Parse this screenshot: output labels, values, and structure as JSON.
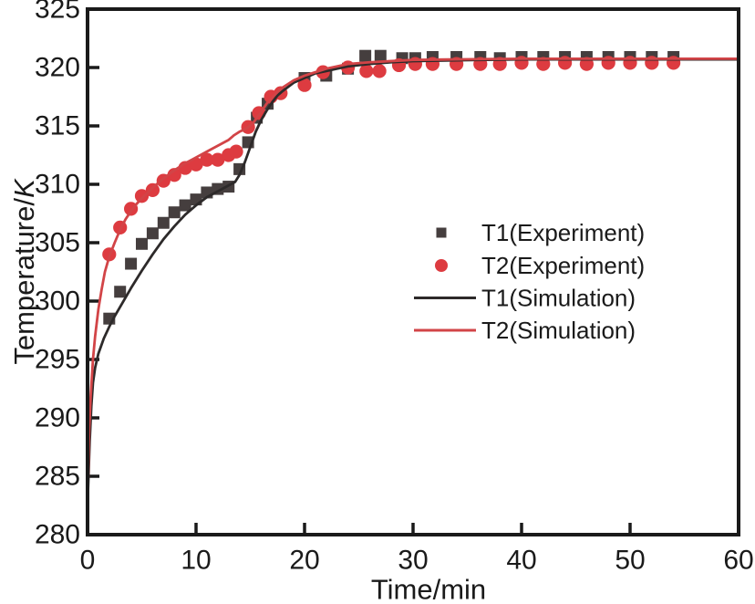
{
  "figure": {
    "background": "#ffffff",
    "axis_color": "#1a1a1a",
    "text_color": "#1a1a1a"
  },
  "chart_data": {
    "type": "line",
    "xlabel": "Time/min",
    "ylabel": "Temperature/K",
    "xlim": [
      0,
      60
    ],
    "ylim": [
      280,
      325
    ],
    "x_ticks": [
      0,
      10,
      20,
      30,
      40,
      50,
      60
    ],
    "y_ticks": [
      280,
      285,
      290,
      295,
      300,
      305,
      310,
      315,
      320,
      325
    ],
    "grid": false,
    "legend_position": "center-right",
    "series": [
      {
        "name": "T1(Experiment)",
        "kind": "scatter",
        "marker": "square",
        "color": "#453e3e",
        "points": [
          [
            2,
            298.5
          ],
          [
            3,
            300.8
          ],
          [
            4,
            303.2
          ],
          [
            5,
            304.9
          ],
          [
            6,
            305.8
          ],
          [
            7,
            306.7
          ],
          [
            8,
            307.6
          ],
          [
            9,
            308.2
          ],
          [
            10,
            308.7
          ],
          [
            11,
            309.3
          ],
          [
            12,
            309.6
          ],
          [
            13,
            309.8
          ],
          [
            14,
            311.3
          ],
          [
            14.8,
            313.6
          ],
          [
            15.6,
            315.7
          ],
          [
            16.6,
            316.9
          ],
          [
            20,
            319.1
          ],
          [
            22,
            319.3
          ],
          [
            24,
            319.9
          ],
          [
            25.6,
            321.0
          ],
          [
            27,
            321.0
          ],
          [
            29,
            320.8
          ],
          [
            30.2,
            320.8
          ],
          [
            31.8,
            320.9
          ],
          [
            34,
            320.9
          ],
          [
            36.2,
            320.9
          ],
          [
            38,
            320.8
          ],
          [
            40,
            320.9
          ],
          [
            42,
            320.9
          ],
          [
            44,
            320.9
          ],
          [
            46,
            320.9
          ],
          [
            48,
            320.9
          ],
          [
            50,
            320.9
          ],
          [
            52,
            320.9
          ],
          [
            54,
            320.9
          ]
        ]
      },
      {
        "name": "T2(Experiment)",
        "kind": "scatter",
        "marker": "circle",
        "color": "#dd3b40",
        "points": [
          [
            2,
            304.0
          ],
          [
            3,
            306.3
          ],
          [
            4,
            307.9
          ],
          [
            5,
            309.0
          ],
          [
            6,
            309.5
          ],
          [
            7,
            310.3
          ],
          [
            8,
            310.8
          ],
          [
            9,
            311.4
          ],
          [
            10,
            311.7
          ],
          [
            11,
            312.1
          ],
          [
            12,
            312.1
          ],
          [
            13,
            312.5
          ],
          [
            13.7,
            312.8
          ],
          [
            14.8,
            314.9
          ],
          [
            15.8,
            316.1
          ],
          [
            16.9,
            317.5
          ],
          [
            17.8,
            317.8
          ],
          [
            20,
            318.5
          ],
          [
            21.7,
            319.6
          ],
          [
            24,
            320.0
          ],
          [
            25.7,
            319.7
          ],
          [
            26.9,
            319.7
          ],
          [
            28.7,
            320.2
          ],
          [
            30.2,
            320.3
          ],
          [
            31.8,
            320.3
          ],
          [
            34,
            320.3
          ],
          [
            36.2,
            320.3
          ],
          [
            38,
            320.3
          ],
          [
            40,
            320.4
          ],
          [
            42,
            320.3
          ],
          [
            44,
            320.4
          ],
          [
            46,
            320.3
          ],
          [
            48,
            320.4
          ],
          [
            50,
            320.4
          ],
          [
            52,
            320.4
          ],
          [
            54,
            320.4
          ]
        ]
      },
      {
        "name": "T1(Simulation)",
        "kind": "line",
        "color": "#2d2a2a",
        "points": [
          [
            0,
            282.5
          ],
          [
            0.2,
            288.0
          ],
          [
            0.35,
            291.0
          ],
          [
            0.5,
            293.0
          ],
          [
            0.7,
            294.3
          ],
          [
            1,
            295.5
          ],
          [
            1.5,
            296.8
          ],
          [
            2,
            297.8
          ],
          [
            2.5,
            298.7
          ],
          [
            3,
            299.5
          ],
          [
            3.5,
            300.3
          ],
          [
            4,
            301.1
          ],
          [
            5,
            302.6
          ],
          [
            6,
            304.0
          ],
          [
            7,
            305.3
          ],
          [
            8,
            306.4
          ],
          [
            9,
            307.4
          ],
          [
            10,
            308.2
          ],
          [
            11,
            308.9
          ],
          [
            12,
            309.4
          ],
          [
            13,
            309.9
          ],
          [
            13.6,
            310.2
          ],
          [
            14,
            310.8
          ],
          [
            14.5,
            311.9
          ],
          [
            15,
            313.2
          ],
          [
            15.5,
            314.5
          ],
          [
            16,
            315.5
          ],
          [
            16.5,
            316.3
          ],
          [
            17,
            317.0
          ],
          [
            17.5,
            317.6
          ],
          [
            18,
            318.0
          ],
          [
            19,
            318.7
          ],
          [
            20,
            319.1
          ],
          [
            21,
            319.5
          ],
          [
            22,
            319.7
          ],
          [
            23,
            319.9
          ],
          [
            24,
            320.1
          ],
          [
            26,
            320.3
          ],
          [
            28,
            320.45
          ],
          [
            30,
            320.55
          ],
          [
            33,
            320.6
          ],
          [
            36,
            320.65
          ],
          [
            40,
            320.7
          ],
          [
            50,
            320.7
          ],
          [
            60,
            320.7
          ]
        ]
      },
      {
        "name": "T2(Simulation)",
        "kind": "line",
        "color": "#d24447",
        "points": [
          [
            0,
            282.5
          ],
          [
            0.15,
            289.0
          ],
          [
            0.3,
            292.0
          ],
          [
            0.5,
            295.0
          ],
          [
            0.7,
            297.0
          ],
          [
            1,
            299.3
          ],
          [
            1.3,
            301.0
          ],
          [
            1.6,
            302.5
          ],
          [
            2,
            303.8
          ],
          [
            2.5,
            305.0
          ],
          [
            3,
            306.1
          ],
          [
            3.5,
            307.0
          ],
          [
            4,
            307.7
          ],
          [
            4.5,
            308.3
          ],
          [
            5,
            308.8
          ],
          [
            6,
            309.7
          ],
          [
            7,
            310.5
          ],
          [
            8,
            311.2
          ],
          [
            9,
            311.8
          ],
          [
            10,
            312.3
          ],
          [
            11,
            312.8
          ],
          [
            12,
            313.3
          ],
          [
            13,
            313.8
          ],
          [
            13.5,
            314.2
          ],
          [
            14,
            314.5
          ],
          [
            14.7,
            314.8
          ],
          [
            15.3,
            315.3
          ],
          [
            16,
            316.2
          ],
          [
            16.5,
            316.9
          ],
          [
            17,
            317.4
          ],
          [
            17.5,
            317.9
          ],
          [
            18,
            318.3
          ],
          [
            19,
            318.9
          ],
          [
            20,
            319.3
          ],
          [
            21,
            319.6
          ],
          [
            22,
            319.9
          ],
          [
            23,
            320.1
          ],
          [
            24,
            320.3
          ],
          [
            26,
            320.45
          ],
          [
            28,
            320.55
          ],
          [
            30,
            320.65
          ],
          [
            34,
            320.7
          ],
          [
            40,
            320.75
          ],
          [
            50,
            320.75
          ],
          [
            60,
            320.75
          ]
        ]
      }
    ]
  }
}
